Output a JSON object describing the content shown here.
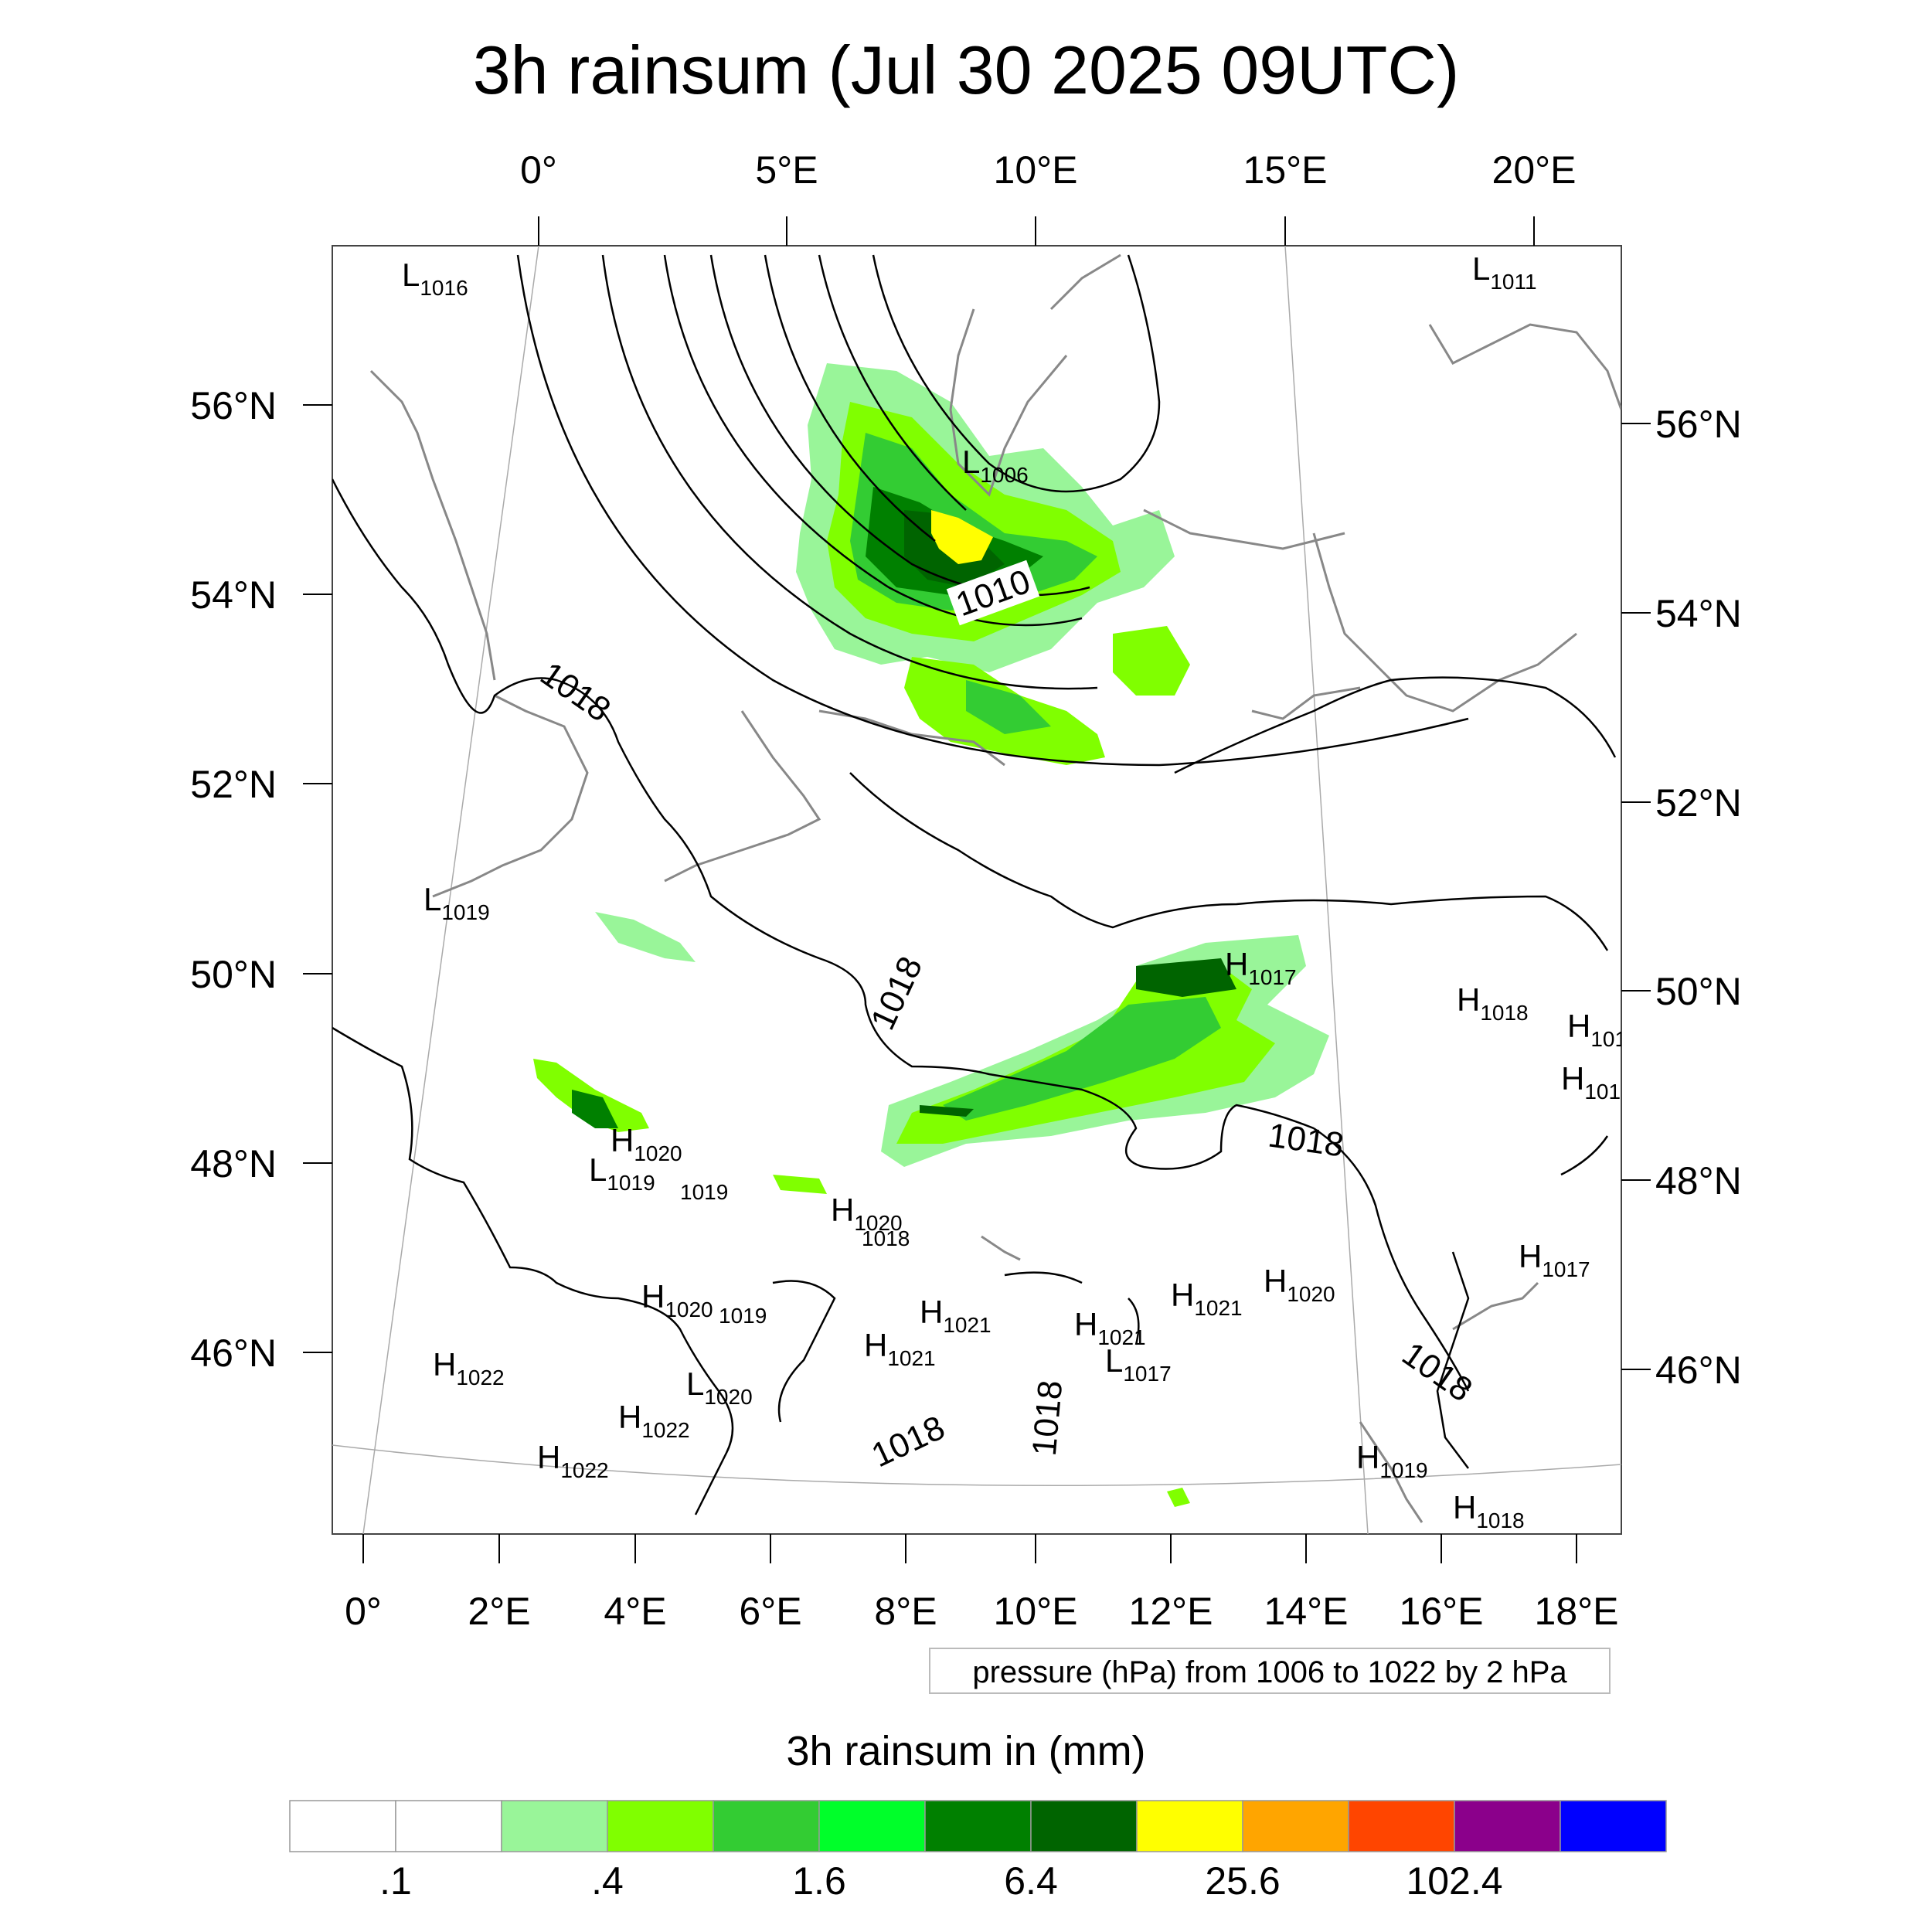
{
  "title": "3h rainsum (Jul 30 2025 09UTC)",
  "map": {
    "top_lon_labels": [
      "0°",
      "5°E",
      "10°E",
      "15°E",
      "20°E"
    ],
    "bottom_lon_labels": [
      "0°",
      "2°E",
      "4°E",
      "6°E",
      "8°E",
      "10°E",
      "12°E",
      "14°E",
      "16°E",
      "18°E"
    ],
    "left_lat_labels": [
      "56°N",
      "54°N",
      "52°N",
      "50°N",
      "48°N",
      "46°N"
    ],
    "right_lat_labels": [
      "56°N",
      "54°N",
      "52°N",
      "50°N",
      "48°N",
      "46°N"
    ],
    "pressure_centers": [
      {
        "type": "L",
        "value": "1016"
      },
      {
        "type": "L",
        "value": "1011"
      },
      {
        "type": "L",
        "value": "1006"
      },
      {
        "type": "L",
        "value": "1019"
      },
      {
        "type": "H",
        "value": "1017"
      },
      {
        "type": "H",
        "value": "1018"
      },
      {
        "type": "H",
        "value": "101"
      },
      {
        "type": "H",
        "value": "101"
      },
      {
        "type": "H",
        "value": "1020"
      },
      {
        "type": "L",
        "value": "1019"
      },
      {
        "type": "H",
        "value": "1020"
      },
      {
        "type": "H",
        "value": "1020"
      },
      {
        "type": "H",
        "value": "1021"
      },
      {
        "type": "H",
        "value": "1020"
      },
      {
        "type": "H",
        "value": "1017"
      },
      {
        "type": "H",
        "value": "1021"
      },
      {
        "type": "H",
        "value": "1021"
      },
      {
        "type": "H",
        "value": "1021"
      },
      {
        "type": "L",
        "value": "1017"
      },
      {
        "type": "H",
        "value": "1022"
      },
      {
        "type": "L",
        "value": "1020"
      },
      {
        "type": "H",
        "value": "1022"
      },
      {
        "type": "H",
        "value": "1022"
      },
      {
        "type": "H",
        "value": "1019"
      },
      {
        "type": "H",
        "value": "1018"
      }
    ],
    "minor_labels": [
      "1019",
      "1018",
      "1019"
    ],
    "isobar_labels": [
      "1010",
      "1018",
      "1018",
      "1018",
      "1018",
      "1018",
      "1018"
    ]
  },
  "legend_note": "pressure (hPa) from 1006 to 1022 by 2 hPa",
  "colorbar": {
    "title": "3h rainsum in (mm)",
    "colors": [
      "#ffffff",
      "#ffffff",
      "#99f599",
      "#80ff00",
      "#33cc33",
      "#00ff2a",
      "#008000",
      "#006400",
      "#ffff00",
      "#ffa500",
      "#ff4500",
      "#8b008b",
      "#0000ff"
    ],
    "labels": [
      ".1",
      ".4",
      "1.6",
      "6.4",
      "25.6",
      "102.4"
    ]
  }
}
